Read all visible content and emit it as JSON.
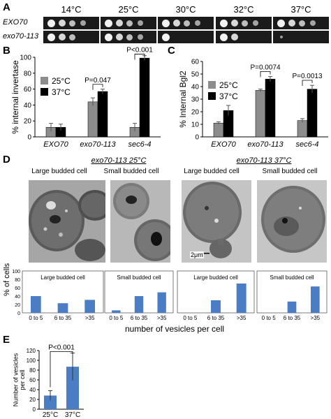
{
  "panelA": {
    "letter": "A",
    "temps": [
      "14°C",
      "25°C",
      "30°C",
      "32°C",
      "37°C"
    ],
    "strains": [
      "EXO70",
      "exo70-113"
    ]
  },
  "panelB": {
    "letter": "B",
    "chart_data": {
      "type": "bar",
      "ylabel": "% internal invertase",
      "ylim": [
        0,
        100
      ],
      "yticks": [
        "0",
        "20",
        "40",
        "60",
        "80",
        "100"
      ],
      "categories": [
        "EXO70",
        "exo70-113",
        "sec6-4"
      ],
      "series": [
        {
          "name": "25°C",
          "values": [
            12,
            44,
            12
          ],
          "errors": [
            5,
            5,
            5
          ],
          "color": "#8c8c8c"
        },
        {
          "name": "37°C",
          "values": [
            12,
            57,
            99
          ],
          "errors": [
            4,
            3,
            3
          ],
          "color": "#000000"
        }
      ],
      "annotations": [
        "P=0.047",
        "P<0.001"
      ]
    }
  },
  "panelC": {
    "letter": "C",
    "chart_data": {
      "type": "bar",
      "ylabel": "% Internal Bgl2",
      "ylim": [
        0,
        60
      ],
      "yticks": [
        "0",
        "10",
        "20",
        "30",
        "40",
        "50",
        "60"
      ],
      "categories": [
        "EXO70",
        "exo70-113",
        "sec6-4"
      ],
      "series": [
        {
          "name": "25°C",
          "values": [
            11,
            37,
            13
          ],
          "errors": [
            1,
            1,
            1.5
          ],
          "color": "#8c8c8c"
        },
        {
          "name": "37°C",
          "values": [
            21,
            46,
            38
          ],
          "errors": [
            4,
            2,
            3
          ],
          "color": "#000000"
        }
      ],
      "annotations": [
        "P=0.0074",
        "P=0.0013"
      ]
    }
  },
  "panelD": {
    "letter": "D",
    "group_titles": [
      "exo70-113 25°C",
      "exo70-113 37°C"
    ],
    "image_labels": [
      "Large budded cell",
      "Small budded cell",
      "Large budded cell",
      "Small budded cell"
    ],
    "scale_bar": "2μm",
    "ylabel": "% of cells",
    "xlabel": "number of vesicles per cell",
    "chart_data": [
      {
        "type": "bar",
        "title": "Large budded cell",
        "categories": [
          "0 to 5",
          "6 to 35",
          ">35"
        ],
        "values": [
          40,
          23,
          31
        ],
        "ylim": [
          0,
          100
        ],
        "yticks": [
          "0",
          "20",
          "40",
          "60",
          "80",
          "100"
        ]
      },
      {
        "type": "bar",
        "title": "Small budded cell",
        "categories": [
          "0 to 5",
          "6 to 35",
          ">35"
        ],
        "values": [
          6,
          40,
          49
        ],
        "ylim": [
          0,
          100
        ]
      },
      {
        "type": "bar",
        "title": "Large budded cell",
        "categories": [
          "0 to 5",
          "6 to 35",
          ">35"
        ],
        "values": [
          0,
          30,
          70
        ],
        "ylim": [
          0,
          100
        ]
      },
      {
        "type": "bar",
        "title": "Small budded cell",
        "categories": [
          "0 to 5",
          "6 to 35",
          ">35"
        ],
        "values": [
          0,
          27,
          63
        ],
        "ylim": [
          0,
          100
        ]
      }
    ]
  },
  "panelE": {
    "letter": "E",
    "chart_data": {
      "type": "bar",
      "ylabel": "Number of vesicles per cell",
      "ylim": [
        0,
        120
      ],
      "yticks": [
        "0",
        "20",
        "40",
        "60",
        "80",
        "100",
        "120"
      ],
      "categories": [
        "25°C",
        "37°C"
      ],
      "values": [
        28,
        87
      ],
      "errors": [
        10,
        28
      ],
      "annotation": "P<0.001"
    }
  }
}
